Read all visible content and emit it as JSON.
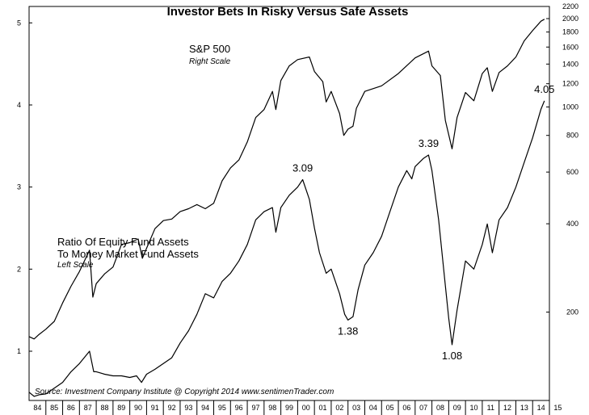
{
  "chart_data": {
    "type": "line",
    "title": "Investor Bets In Risky Versus Safe Assets",
    "source": "Source:  Investment Company Institute  @ Copyright 2014   www.sentimenTrader.com",
    "x_labels": [
      "84",
      "85",
      "86",
      "87",
      "88",
      "89",
      "90",
      "91",
      "92",
      "93",
      "94",
      "95",
      "96",
      "97",
      "98",
      "99",
      "00",
      "01",
      "02",
      "03",
      "04",
      "05",
      "06",
      "07",
      "08",
      "09",
      "10",
      "11",
      "12",
      "13",
      "14",
      "15"
    ],
    "xlim": [
      1984,
      2015
    ],
    "left_axis": {
      "scale": "linear",
      "ylim": [
        0.4,
        5.2
      ],
      "ticks": [
        1,
        2,
        3,
        4,
        5
      ]
    },
    "right_axis": {
      "scale": "log",
      "ylim": [
        100,
        2200
      ],
      "ticks": [
        200,
        400,
        600,
        800,
        1000,
        1200,
        1400,
        1600,
        1800,
        2000,
        2200
      ]
    },
    "series": [
      {
        "name": "S&P 500",
        "axis": "right",
        "label_sub": "Right Scale",
        "color": "#000000",
        "points": [
          [
            1984.0,
            165
          ],
          [
            1984.3,
            162
          ],
          [
            1984.6,
            168
          ],
          [
            1985.0,
            175
          ],
          [
            1985.5,
            186
          ],
          [
            1986.0,
            215
          ],
          [
            1986.5,
            245
          ],
          [
            1987.0,
            275
          ],
          [
            1987.6,
            325
          ],
          [
            1987.8,
            225
          ],
          [
            1988.0,
            250
          ],
          [
            1988.5,
            270
          ],
          [
            1989.0,
            285
          ],
          [
            1989.5,
            340
          ],
          [
            1990.0,
            345
          ],
          [
            1990.5,
            355
          ],
          [
            1990.75,
            305
          ],
          [
            1991.0,
            330
          ],
          [
            1991.5,
            385
          ],
          [
            1992.0,
            410
          ],
          [
            1992.5,
            415
          ],
          [
            1993.0,
            440
          ],
          [
            1993.5,
            450
          ],
          [
            1994.0,
            465
          ],
          [
            1994.5,
            450
          ],
          [
            1995.0,
            470
          ],
          [
            1995.5,
            560
          ],
          [
            1996.0,
            620
          ],
          [
            1996.5,
            660
          ],
          [
            1997.0,
            760
          ],
          [
            1997.5,
            920
          ],
          [
            1998.0,
            980
          ],
          [
            1998.5,
            1130
          ],
          [
            1998.7,
            980
          ],
          [
            1999.0,
            1230
          ],
          [
            1999.5,
            1380
          ],
          [
            2000.0,
            1450
          ],
          [
            2000.7,
            1480
          ],
          [
            2001.0,
            1320
          ],
          [
            2001.5,
            1220
          ],
          [
            2001.7,
            1040
          ],
          [
            2002.0,
            1130
          ],
          [
            2002.5,
            950
          ],
          [
            2002.75,
            800
          ],
          [
            2003.0,
            840
          ],
          [
            2003.3,
            860
          ],
          [
            2003.5,
            990
          ],
          [
            2004.0,
            1130
          ],
          [
            2005.0,
            1180
          ],
          [
            2006.0,
            1300
          ],
          [
            2007.0,
            1470
          ],
          [
            2007.8,
            1550
          ],
          [
            2008.0,
            1380
          ],
          [
            2008.5,
            1280
          ],
          [
            2008.8,
            900
          ],
          [
            2009.2,
            720
          ],
          [
            2009.5,
            920
          ],
          [
            2010.0,
            1120
          ],
          [
            2010.5,
            1050
          ],
          [
            2011.0,
            1300
          ],
          [
            2011.3,
            1360
          ],
          [
            2011.6,
            1130
          ],
          [
            2012.0,
            1310
          ],
          [
            2012.5,
            1380
          ],
          [
            2013.0,
            1480
          ],
          [
            2013.5,
            1680
          ],
          [
            2014.0,
            1820
          ],
          [
            2014.5,
            1960
          ],
          [
            2014.7,
            1990
          ]
        ]
      },
      {
        "name": "Ratio Of Equity Fund Assets To Money Market Fund Assets",
        "axis": "left",
        "label_sub": "Left Scale",
        "color": "#000000",
        "points": [
          [
            1984.0,
            0.5
          ],
          [
            1984.3,
            0.45
          ],
          [
            1984.6,
            0.47
          ],
          [
            1985.0,
            0.48
          ],
          [
            1985.5,
            0.55
          ],
          [
            1986.0,
            0.62
          ],
          [
            1986.5,
            0.75
          ],
          [
            1987.0,
            0.85
          ],
          [
            1987.6,
            1.0
          ],
          [
            1987.85,
            0.75
          ],
          [
            1988.0,
            0.75
          ],
          [
            1988.5,
            0.72
          ],
          [
            1989.0,
            0.7
          ],
          [
            1989.5,
            0.7
          ],
          [
            1990.0,
            0.68
          ],
          [
            1990.4,
            0.7
          ],
          [
            1990.7,
            0.62
          ],
          [
            1991.0,
            0.72
          ],
          [
            1991.5,
            0.78
          ],
          [
            1992.0,
            0.85
          ],
          [
            1992.5,
            0.92
          ],
          [
            1993.0,
            1.1
          ],
          [
            1993.5,
            1.25
          ],
          [
            1994.0,
            1.45
          ],
          [
            1994.5,
            1.7
          ],
          [
            1995.0,
            1.65
          ],
          [
            1995.5,
            1.85
          ],
          [
            1996.0,
            1.95
          ],
          [
            1996.5,
            2.1
          ],
          [
            1997.0,
            2.3
          ],
          [
            1997.5,
            2.6
          ],
          [
            1998.0,
            2.7
          ],
          [
            1998.5,
            2.75
          ],
          [
            1998.7,
            2.45
          ],
          [
            1999.0,
            2.75
          ],
          [
            1999.5,
            2.9
          ],
          [
            2000.0,
            3.0
          ],
          [
            2000.3,
            3.09
          ],
          [
            2000.7,
            2.85
          ],
          [
            2001.0,
            2.5
          ],
          [
            2001.3,
            2.2
          ],
          [
            2001.7,
            1.95
          ],
          [
            2002.0,
            2.0
          ],
          [
            2002.5,
            1.7
          ],
          [
            2002.8,
            1.45
          ],
          [
            2003.0,
            1.38
          ],
          [
            2003.3,
            1.42
          ],
          [
            2003.6,
            1.75
          ],
          [
            2004.0,
            2.05
          ],
          [
            2004.5,
            2.2
          ],
          [
            2005.0,
            2.4
          ],
          [
            2005.5,
            2.7
          ],
          [
            2006.0,
            3.0
          ],
          [
            2006.5,
            3.2
          ],
          [
            2006.8,
            3.1
          ],
          [
            2007.0,
            3.25
          ],
          [
            2007.5,
            3.35
          ],
          [
            2007.8,
            3.39
          ],
          [
            2008.0,
            3.2
          ],
          [
            2008.4,
            2.6
          ],
          [
            2008.8,
            1.8
          ],
          [
            2009.0,
            1.4
          ],
          [
            2009.2,
            1.08
          ],
          [
            2009.5,
            1.5
          ],
          [
            2010.0,
            2.1
          ],
          [
            2010.5,
            2.0
          ],
          [
            2011.0,
            2.3
          ],
          [
            2011.3,
            2.55
          ],
          [
            2011.6,
            2.2
          ],
          [
            2012.0,
            2.6
          ],
          [
            2012.5,
            2.75
          ],
          [
            2013.0,
            3.0
          ],
          [
            2013.5,
            3.3
          ],
          [
            2014.0,
            3.6
          ],
          [
            2014.5,
            3.95
          ],
          [
            2014.7,
            4.05
          ]
        ]
      }
    ],
    "annotations": [
      {
        "text": "3.09",
        "x": 2000.3,
        "y": 3.09
      },
      {
        "text": "1.38",
        "x": 2003.0,
        "y": 1.38
      },
      {
        "text": "3.39",
        "x": 2007.8,
        "y": 3.39
      },
      {
        "text": "1.08",
        "x": 2009.2,
        "y": 1.08
      },
      {
        "text": "4.05",
        "x": 2014.7,
        "y": 4.05
      }
    ],
    "grid": false,
    "legend": "none"
  }
}
